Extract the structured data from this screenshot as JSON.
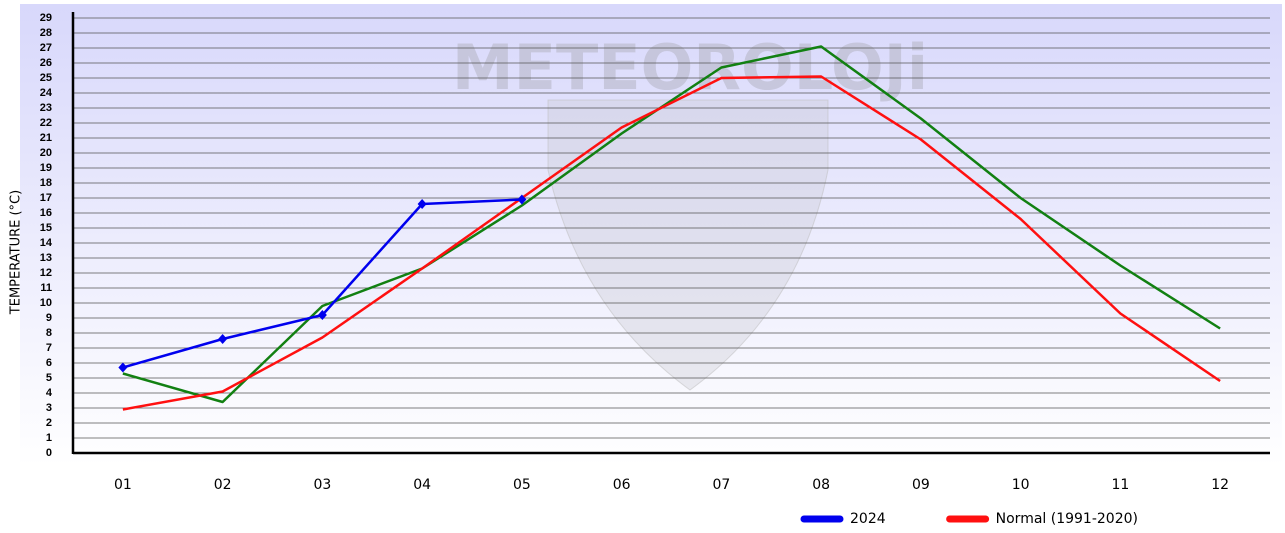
{
  "chart_data": {
    "type": "line",
    "watermark": "METEOROLOJi",
    "y_label": "TEMPERATURE (°C)",
    "categories": [
      "01",
      "02",
      "03",
      "04",
      "05",
      "06",
      "07",
      "08",
      "09",
      "10",
      "11",
      "12"
    ],
    "series": [
      {
        "name": "2024",
        "color": "#0000ee",
        "marker": "diamond",
        "values": [
          5.7,
          7.6,
          9.2,
          16.6,
          16.9,
          null,
          null,
          null,
          null,
          null,
          null,
          null
        ]
      },
      {
        "color": "#128012",
        "values": [
          5.3,
          3.4,
          9.8,
          12.3,
          16.5,
          21.3,
          25.7,
          27.1,
          22.3,
          17.0,
          12.5,
          8.3
        ]
      },
      {
        "name": "Normal (1991-2020)",
        "color": "#ff1010",
        "values": [
          2.9,
          4.1,
          7.7,
          12.3,
          17.0,
          21.7,
          25.0,
          25.1,
          20.9,
          15.6,
          9.3,
          4.8
        ]
      }
    ],
    "ylim": [
      0,
      29
    ],
    "yticks": [
      0,
      1,
      2,
      3,
      4,
      5,
      6,
      7,
      8,
      9,
      10,
      11,
      12,
      13,
      14,
      15,
      16,
      17,
      18,
      19,
      20,
      21,
      22,
      23,
      24,
      25,
      26,
      27,
      28,
      29
    ],
    "grid": true,
    "legend": "bottom"
  }
}
